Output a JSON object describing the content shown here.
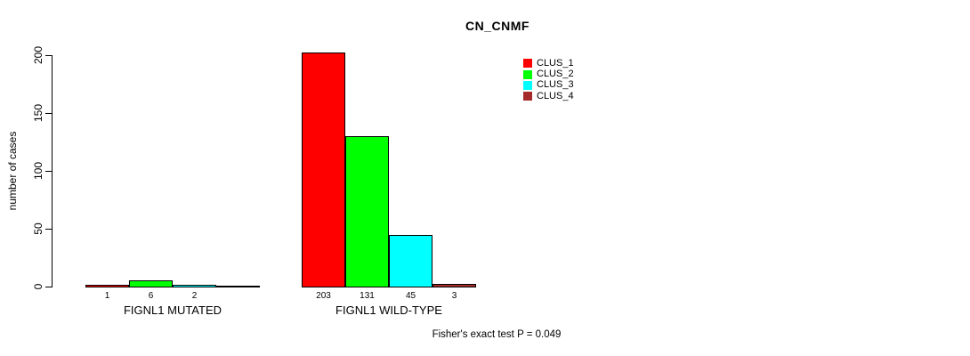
{
  "chart_data": {
    "type": "bar",
    "title": "CN_CNMF",
    "ylabel": "number of cases",
    "ylim": [
      0,
      200
    ],
    "yticks": [
      0,
      50,
      100,
      150,
      200
    ],
    "grid": false,
    "legend_position": "top-right",
    "legend": [
      {
        "label": "CLUS_1",
        "color": "#ff0000"
      },
      {
        "label": "CLUS_2",
        "color": "#00ff00"
      },
      {
        "label": "CLUS_3",
        "color": "#00ffff"
      },
      {
        "label": "CLUS_4",
        "color": "#a52a2a"
      }
    ],
    "categories": [
      "CLUS_1",
      "CLUS_2",
      "CLUS_3",
      "CLUS_4"
    ],
    "groups": [
      {
        "label": "FIGNL1 MUTATED",
        "values": [
          1,
          6,
          2,
          0
        ],
        "value_labels": [
          "1",
          "6",
          "2",
          ""
        ]
      },
      {
        "label": "FIGNL1 WILD-TYPE",
        "values": [
          203,
          131,
          45,
          3
        ],
        "value_labels": [
          "203",
          "131",
          "45",
          "3"
        ]
      }
    ],
    "annotation": "Fisher's exact test P = 0.049",
    "colors": {
      "axis": "#000000",
      "text": "#000000",
      "background": "#ffffff",
      "bar_border": "#000000"
    }
  }
}
